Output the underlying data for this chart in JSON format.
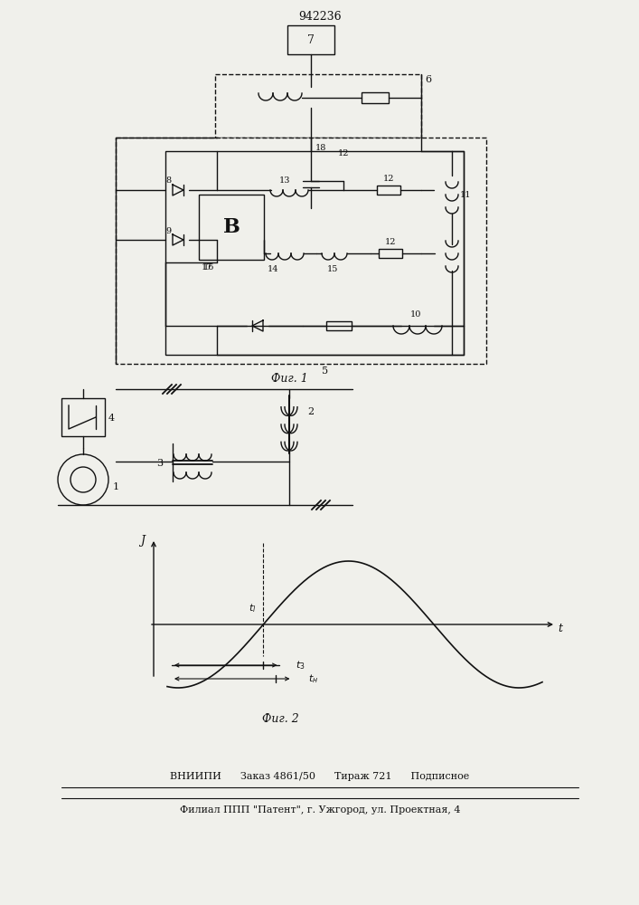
{
  "title": "942236",
  "fig1_label": "Фиг. 1",
  "fig2_label": "Фиг. 2",
  "bottom_text1": "ВНИИПИ      Заказ 4861/50      Тираж 721      Подписное",
  "bottom_text2": "Филиал ППП \"Патент\", г. Ужгород, ул. Проектная, 4",
  "bg_color": "#f0f0eb",
  "line_color": "#111111"
}
